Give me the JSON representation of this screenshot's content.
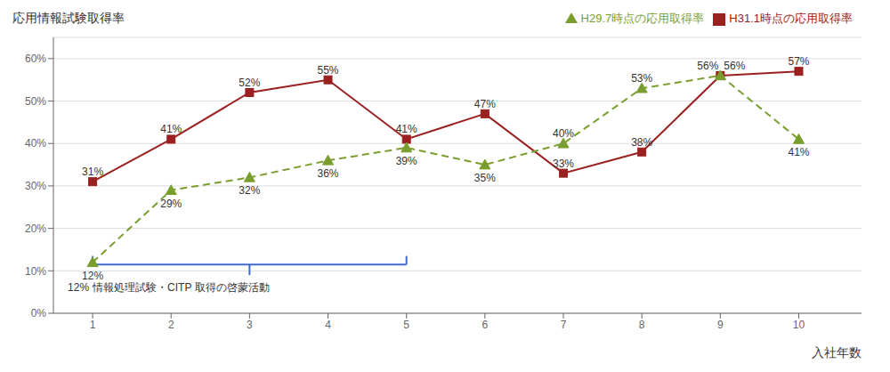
{
  "chart_data": {
    "type": "line",
    "x": [
      1,
      2,
      3,
      4,
      5,
      6,
      7,
      8,
      9,
      10
    ],
    "xlim": [
      0.5,
      10.8
    ],
    "xticks": [
      1,
      2,
      3,
      4,
      5,
      6,
      7,
      8,
      9,
      10
    ],
    "ylim": [
      0,
      65
    ],
    "yticks": [
      {
        "value": 0,
        "label": "0%"
      },
      {
        "value": 10,
        "label": "10%"
      },
      {
        "value": 20,
        "label": "20%"
      },
      {
        "value": 30,
        "label": "30%"
      },
      {
        "value": 40,
        "label": "40%"
      },
      {
        "value": 50,
        "label": "50%"
      },
      {
        "value": 60,
        "label": "60%"
      }
    ],
    "xlabel": "入社年数",
    "ylabel": "応用情報試験取得率",
    "grid": "y",
    "legend": "upper right",
    "data_labels": true,
    "series": [
      {
        "name": "H31.1時点の応用取得率",
        "color": "#9B2020",
        "marker": "square",
        "line_style": "solid",
        "values": [
          31,
          41,
          52,
          55,
          41,
          47,
          33,
          38,
          56,
          57
        ],
        "value_labels": [
          "31%",
          "41%",
          "52%",
          "55%",
          "41%",
          "47%",
          "33%",
          "38%",
          "56%",
          "57%"
        ]
      },
      {
        "name": "H29.7時点の応用取得率",
        "color": "#7A9E2E",
        "marker": "triangle",
        "line_style": "dashed",
        "values": [
          12,
          29,
          32,
          36,
          39,
          35,
          40,
          53,
          56,
          41
        ],
        "value_labels": [
          "12%",
          "29%",
          "32%",
          "36%",
          "39%",
          "35%",
          "40%",
          "53%",
          "56%",
          "41%"
        ]
      }
    ],
    "annotations": [
      {
        "text": "12%"
      },
      {
        "text": "情報処理試験・CITP 取得の啓蒙活動",
        "color": "#4169CD"
      }
    ]
  }
}
